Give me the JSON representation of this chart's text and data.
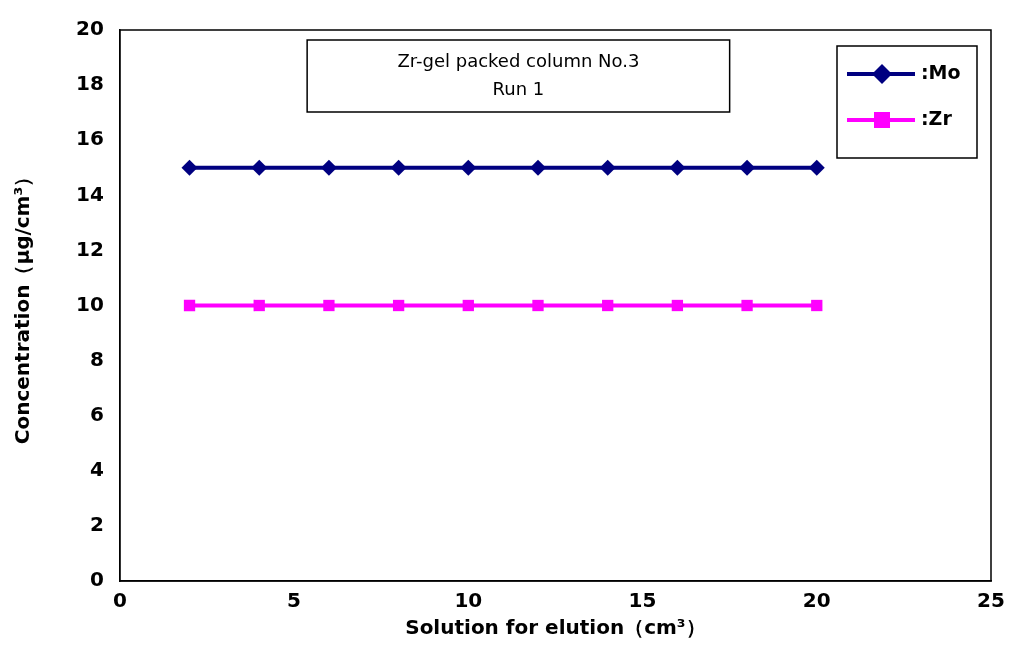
{
  "chart_data": {
    "type": "line",
    "title": "Zr-gel packed column No.3",
    "subtitle": "Run 1",
    "xlabel": "Solution for elution（cm³）",
    "ylabel": "Concentration（μg/cm³）",
    "x": [
      2,
      4,
      6,
      8,
      10,
      12,
      14,
      16,
      18,
      20
    ],
    "series": [
      {
        "name": ":Mo",
        "color": "#000080",
        "marker": "diamond",
        "values": [
          15,
          15,
          15,
          15,
          15,
          15,
          15,
          15,
          15,
          15
        ]
      },
      {
        "name": ":Zr",
        "color": "#ff00ff",
        "marker": "square",
        "values": [
          10,
          10,
          10,
          10,
          10,
          10,
          10,
          10,
          10,
          10
        ]
      }
    ],
    "xlim": [
      0,
      25
    ],
    "xticks": [
      0,
      5,
      10,
      15,
      20,
      25
    ],
    "ylim": [
      0,
      20
    ],
    "yticks": [
      0,
      2,
      4,
      6,
      8,
      10,
      12,
      14,
      16,
      18,
      20
    ],
    "grid": false,
    "legend": "top right",
    "line_style": "solid"
  }
}
